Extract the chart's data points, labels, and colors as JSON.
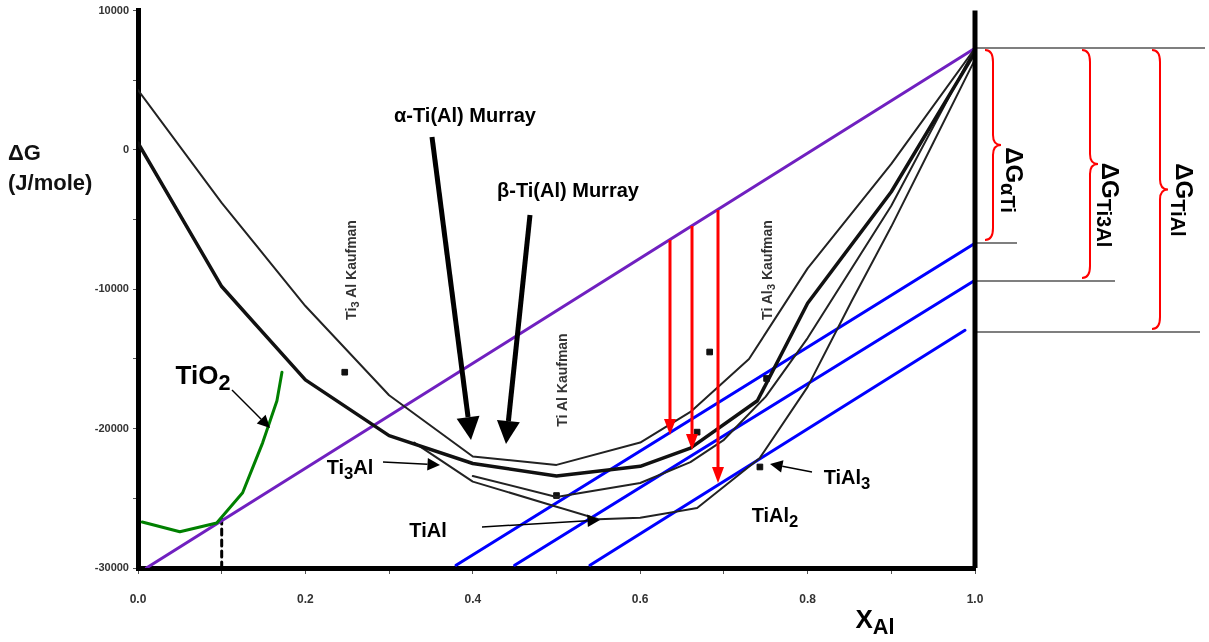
{
  "chart_data": {
    "type": "line",
    "xlabel": "X$_{Al}$",
    "ylabel": "ΔG (J/mole)",
    "xlim": [
      0,
      1
    ],
    "ylim": [
      -30000,
      10000
    ],
    "xticks": [
      {
        "value": 0,
        "label": "0.0"
      },
      {
        "value": 0.1,
        "label": null
      },
      {
        "value": 0.2,
        "label": "0.2"
      },
      {
        "value": 0.3,
        "label": null
      },
      {
        "value": 0.4,
        "label": "0.4"
      },
      {
        "value": 0.5,
        "label": null
      },
      {
        "value": 0.6,
        "label": "0.6"
      },
      {
        "value": 0.7,
        "label": null
      },
      {
        "value": 0.8,
        "label": "0.8"
      },
      {
        "value": 0.9,
        "label": null
      },
      {
        "value": 1,
        "label": "1.0"
      }
    ],
    "yticks": [
      -30000,
      {
        "value": -25000,
        "label": null
      },
      -20000,
      {
        "value": -15000,
        "label": null
      },
      -10000,
      {
        "value": -5000,
        "label": null
      },
      0,
      {
        "value": 5000,
        "label": null
      },
      10000
    ],
    "series": [
      {
        "type": "line",
        "color": "#222222",
        "marker": "none",
        "x": [
          0,
          0.1,
          0.2,
          0.3,
          0.4,
          0.5,
          0.6,
          0.66,
          0.73,
          0.8,
          0.9,
          1.0
        ],
        "values": [
          4300,
          -3800,
          -11200,
          -17600,
          -22000,
          -22600,
          -21000,
          -18800,
          -15000,
          -8500,
          -1000,
          7300
        ]
      },
      {
        "type": "line",
        "color": "#111111",
        "marker": "none",
        "x": [
          0,
          0.1,
          0.2,
          0.3,
          0.4,
          0.5,
          0.6,
          0.66,
          0.74,
          0.8,
          0.9,
          1.0
        ],
        "values": [
          500,
          -9800,
          -16500,
          -20500,
          -22500,
          -23400,
          -22700,
          -21400,
          -18000,
          -11000,
          -3000,
          7000
        ]
      },
      {
        "type": "line",
        "color": "#222222",
        "marker": "none",
        "x": [
          0.33,
          0.4,
          0.5,
          0.55,
          0.6,
          0.668,
          0.743,
          0.8,
          0.853,
          0.9,
          0.95,
          1.0
        ],
        "values": [
          -21000,
          -23800,
          -25600,
          -26500,
          -26400,
          -25700,
          -22100,
          -17000,
          -10800,
          -5500,
          500,
          6500
        ]
      },
      {
        "type": "line",
        "color": "#222222",
        "marker": "none",
        "x": [
          0.4,
          0.5,
          0.6,
          0.66,
          0.7,
          0.75,
          0.8,
          0.9,
          1.0
        ],
        "values": [
          -23400,
          -24900,
          -23900,
          -22400,
          -20800,
          -17700,
          -13500,
          -4000,
          7300
        ]
      },
      {
        "type": "scatter",
        "color": "#111111",
        "marker": "square",
        "x": [
          0.247,
          0.5,
          0.668,
          0.683,
          0.743,
          0.751
        ],
        "values": [
          -15950,
          -24800,
          -20250,
          -14500,
          -22750,
          -16400
        ]
      },
      {
        "type": "line",
        "color": "#008000",
        "marker": "none",
        "x": [
          0.005,
          0.05,
          0.094,
          0.125,
          0.149,
          0.166,
          0.172
        ],
        "values": [
          -26700,
          -27400,
          -26770,
          -24600,
          -21000,
          -18000,
          -15950
        ]
      },
      {
        "type": "line",
        "color": "#7020c0",
        "marker": "none",
        "x": [
          0.01,
          1.0
        ],
        "values": [
          -30000,
          7300
        ]
      },
      {
        "type": "line",
        "color": "#0000ff",
        "marker": "none",
        "x": [
          0.38,
          1.0
        ],
        "values": [
          -29800,
          -6700
        ]
      },
      {
        "type": "line",
        "color": "#0000ff",
        "marker": "none",
        "x": [
          0.45,
          1.0
        ],
        "values": [
          -29800,
          -9350
        ]
      },
      {
        "type": "line",
        "color": "#0000ff",
        "marker": "none",
        "x": [
          0.54,
          0.988
        ],
        "values": [
          -29800,
          -12940
        ]
      },
      {
        "type": "line",
        "color": "#000000",
        "marker": "none",
        "line_style": "dashed",
        "x": [
          0.1,
          0.1
        ],
        "values": [
          -30000,
          -26500
        ]
      }
    ],
    "annotations": [
      "TiO$_{2}$",
      "Ti$_{3}$Al",
      "TiAl",
      "TiAl$_{2}$",
      "TiAl$_{3}$",
      "α-Ti(Al) Murray",
      "β-Ti(Al) Murray",
      "Ti$_{3}$ Al Kaufman",
      "Ti Al Kaufman",
      "Ti Al$_{3}$ Kaufman",
      "ΔG$_{αTi}$",
      "ΔG$_{Ti3Al}$",
      "ΔG$_{TiAl}$"
    ]
  }
}
